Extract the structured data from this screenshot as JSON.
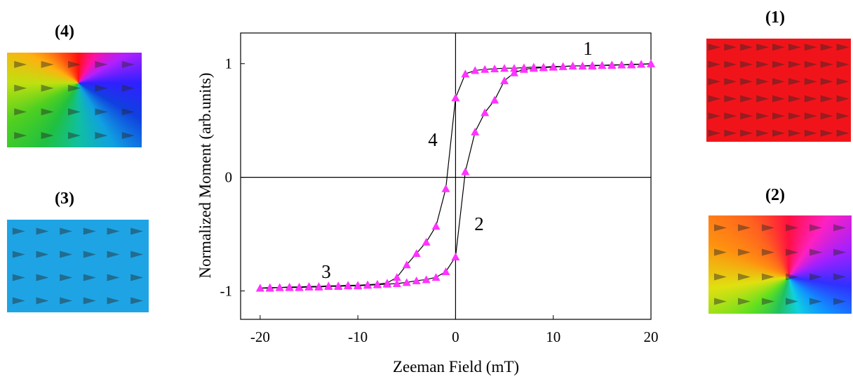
{
  "chart_data": {
    "type": "line",
    "x_label": "Zeeman Field (mT)",
    "y_label": "Normalized Moment (arb.units)",
    "xlim": [
      -22,
      20
    ],
    "ylim": [
      -1.25,
      1.27
    ],
    "xticks": [
      -20,
      -10,
      0,
      10,
      20
    ],
    "yticks": [
      -1,
      0,
      1
    ],
    "line_color": "#000000",
    "marker_color": "#ff33ff",
    "series": [
      {
        "x": [
          20,
          19,
          18,
          17,
          16,
          15,
          14,
          13,
          12,
          11,
          10,
          9,
          8,
          7,
          6,
          5,
          4,
          3,
          2,
          1,
          0,
          -1,
          -2,
          -3,
          -4,
          -5,
          -6,
          -7,
          -8,
          -9,
          -10,
          -11,
          -12,
          -13,
          -14,
          -15,
          -16,
          -17,
          -18,
          -19,
          -20
        ],
        "values": [
          1.0,
          0.995,
          0.99,
          0.99,
          0.985,
          0.985,
          0.98,
          0.98,
          0.98,
          0.975,
          0.975,
          0.97,
          0.97,
          0.965,
          0.96,
          0.96,
          0.955,
          0.95,
          0.94,
          0.91,
          0.7,
          -0.1,
          -0.43,
          -0.57,
          -0.67,
          -0.77,
          -0.88,
          -0.93,
          -0.94,
          -0.945,
          -0.95,
          -0.95,
          -0.955,
          -0.955,
          -0.96,
          -0.96,
          -0.965,
          -0.965,
          -0.97,
          -0.97,
          -0.975
        ]
      },
      {
        "x": [
          -20,
          -19,
          -18,
          -17,
          -16,
          -15,
          -14,
          -13,
          -12,
          -11,
          -10,
          -9,
          -8,
          -7,
          -6,
          -5,
          -4,
          -3,
          -2,
          -1,
          0,
          1,
          2,
          3,
          4,
          5,
          6,
          7,
          8,
          9,
          10,
          11,
          12,
          13,
          14,
          15,
          16,
          17,
          18,
          19,
          20
        ],
        "values": [
          -0.975,
          -0.975,
          -0.97,
          -0.97,
          -0.97,
          -0.965,
          -0.965,
          -0.96,
          -0.96,
          -0.955,
          -0.955,
          -0.95,
          -0.945,
          -0.94,
          -0.935,
          -0.925,
          -0.91,
          -0.9,
          -0.88,
          -0.83,
          -0.7,
          0.05,
          0.4,
          0.57,
          0.68,
          0.85,
          0.92,
          0.95,
          0.96,
          0.965,
          0.97,
          0.975,
          0.98,
          0.98,
          0.985,
          0.985,
          0.99,
          0.99,
          0.995,
          0.995,
          1.0
        ]
      }
    ],
    "annotations": [
      "1",
      "2",
      "3",
      "4"
    ]
  },
  "panels": [
    {
      "label": "(1)"
    },
    {
      "label": "(2)"
    },
    {
      "label": "(3)"
    },
    {
      "label": "(4)"
    }
  ]
}
